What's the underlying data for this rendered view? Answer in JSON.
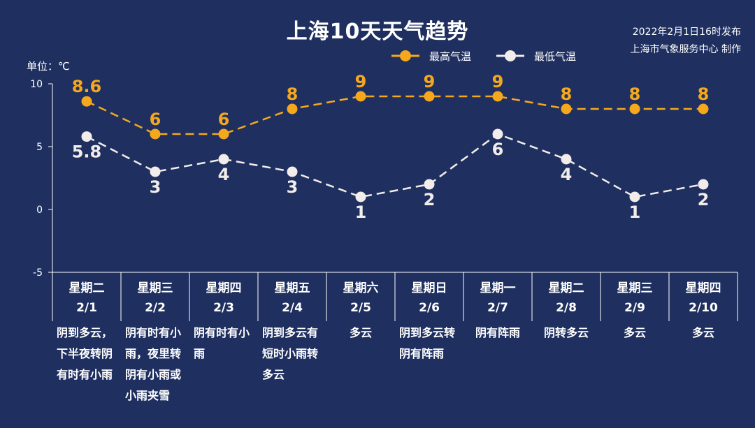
{
  "header": {
    "title": "上海10天天气趋势",
    "publish_line1": "2022年2月1日16时发布",
    "publish_line2": "上海市气象服务中心 制作",
    "unit": "单位：℃"
  },
  "colors": {
    "high": "#f5a81c",
    "low": "#f2ecea",
    "axis": "#ffffff",
    "background": "#1f3060"
  },
  "chart_data": {
    "type": "line",
    "categories": [
      "2/1",
      "2/2",
      "2/3",
      "2/4",
      "2/5",
      "2/6",
      "2/7",
      "2/8",
      "2/9",
      "2/10"
    ],
    "weekdays": [
      "星期二",
      "星期三",
      "星期四",
      "星期五",
      "星期六",
      "星期日",
      "星期一",
      "星期二",
      "星期三",
      "星期四"
    ],
    "weather": [
      "阴到多云，下半夜转阴有时有小雨",
      "阴有时有小雨，夜里转阴有小雨或小雨夹雪",
      "阴有时有小雨",
      "阴到多云有短时小雨转多云",
      "多云",
      "阴到多云转阴有阵雨",
      "阴有阵雨",
      "阴转多云",
      "多云",
      "多云"
    ],
    "series": [
      {
        "name": "最高气温",
        "values": [
          8.6,
          6,
          6,
          8,
          9,
          9,
          9,
          8,
          8,
          8
        ],
        "labels": [
          "8.6",
          "6",
          "6",
          "8",
          "9",
          "9",
          "9",
          "8",
          "8",
          "8"
        ]
      },
      {
        "name": "最低气温",
        "values": [
          5.8,
          3,
          4,
          3,
          1,
          2,
          6,
          4,
          1,
          2
        ],
        "labels": [
          "5.8",
          "3",
          "4",
          "3",
          "1",
          "2",
          "6",
          "4",
          "1",
          "2"
        ]
      }
    ],
    "yticks": [
      "10",
      "5",
      "0",
      "-5"
    ],
    "ylim": [
      -5,
      10
    ],
    "legend": "top-center"
  }
}
